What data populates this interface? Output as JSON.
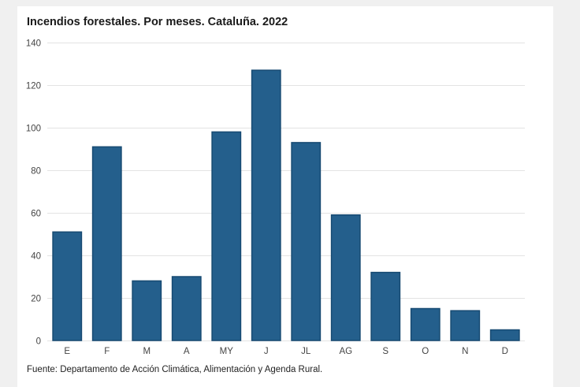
{
  "chart_data": {
    "type": "bar",
    "title": "Incendios forestales. Por meses. Cataluña. 2022",
    "xlabel": "",
    "ylabel": "",
    "categories": [
      "E",
      "F",
      "M",
      "A",
      "MY",
      "J",
      "JL",
      "AG",
      "S",
      "O",
      "N",
      "D"
    ],
    "values": [
      51,
      91,
      28,
      30,
      98,
      127,
      93,
      59,
      32,
      15,
      14,
      5
    ],
    "ylim": [
      0,
      140
    ],
    "yticks": [
      0,
      20,
      40,
      60,
      80,
      100,
      120,
      140
    ],
    "grid": true,
    "legend": "none",
    "bar_color": "#245f8c",
    "bar_edge_color": "#174a72",
    "grid_color": "#e3e3e3"
  },
  "source": "Fuente: Departamento de Acción Climática, Alimentación y Agenda Rural."
}
